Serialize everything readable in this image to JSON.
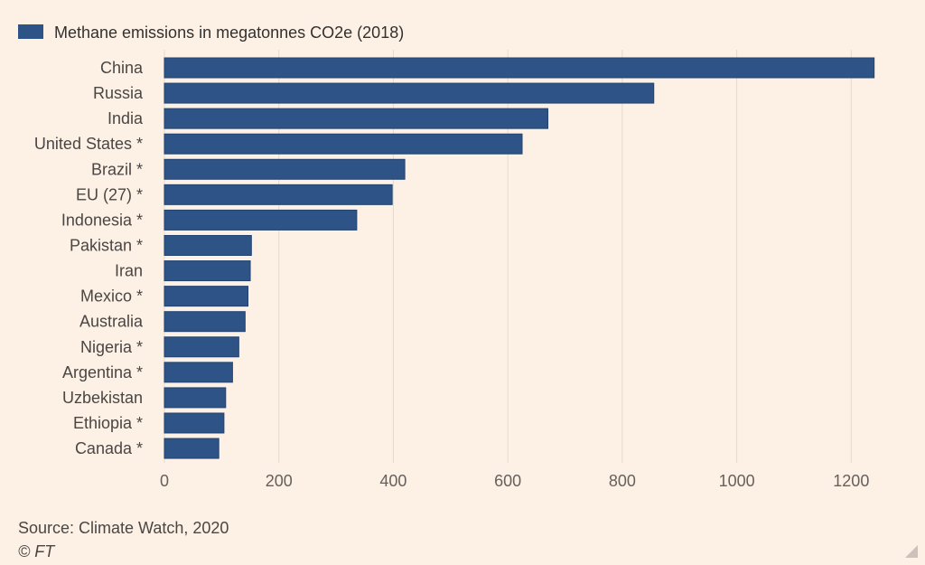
{
  "chart_data": {
    "type": "bar",
    "orientation": "horizontal",
    "categories": [
      "China",
      "Russia",
      "India",
      "United States *",
      "Brazil *",
      "EU (27) *",
      "Indonesia *",
      "Pakistan *",
      "Iran",
      "Mexico *",
      "Australia",
      "Nigeria *",
      "Argentina *",
      "Uzbekistan",
      "Ethiopia *",
      "Canada *"
    ],
    "series": [
      {
        "name": "Methane emissions in megatonnes CO2e (2018)",
        "values": [
          1240,
          855,
          670,
          625,
          420,
          398,
          336,
          152,
          150,
          146,
          141,
          130,
          119,
          107,
          104,
          95
        ]
      }
    ],
    "xlim": [
      0,
      1250
    ],
    "xticks": [
      0,
      200,
      400,
      600,
      800,
      1000,
      1200
    ],
    "grid": true,
    "legend_position": "top-left",
    "colors": {
      "bar": "#2e5387",
      "background": "#fdf1e6",
      "grid": "#e6d9ce"
    }
  },
  "footer": {
    "source": "Source: Climate Watch, 2020",
    "credit": "© FT"
  }
}
